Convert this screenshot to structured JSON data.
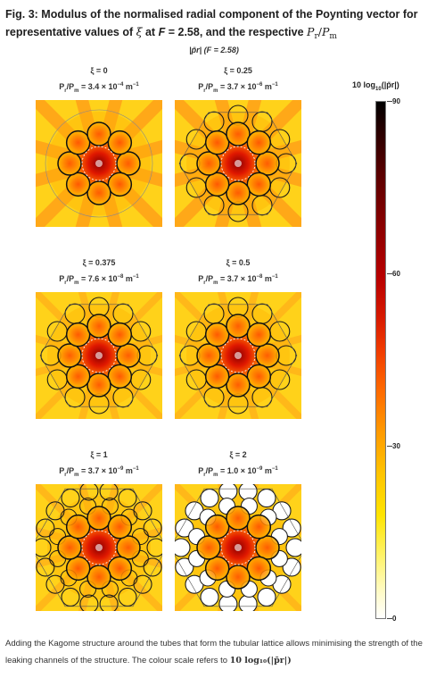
{
  "caption": {
    "label": "Fig. 3:",
    "text": "Modulus of the normalised radial component of the Poynting vector for representative values of",
    "xi_symbol": "ξ",
    "text2": "at",
    "f_label": "F",
    "text3": "= 2.58, and the respective",
    "ratio_symbol_p": "P",
    "ratio_sub_r": "r",
    "ratio_div": "/",
    "ratio_symbol_pm": "P",
    "ratio_sub_m": "m"
  },
  "figure_header": "|p̄r| (F = 2.58)",
  "panels": [
    {
      "xi": "ξ = 0",
      "ratio_base": "P",
      "ratio_sub1": "r",
      "ratio_mid": "/P",
      "ratio_sub2": "m",
      "ratio_value": " = 3.4 × 10",
      "ratio_exp": "−4",
      "ratio_unit": " m",
      "ratio_unit_exp": "−1"
    },
    {
      "xi": "ξ = 0.25",
      "ratio_base": "P",
      "ratio_sub1": "r",
      "ratio_mid": "/P",
      "ratio_sub2": "m",
      "ratio_value": " = 3.7 × 10",
      "ratio_exp": "−6",
      "ratio_unit": " m",
      "ratio_unit_exp": "−1"
    },
    {
      "xi": "ξ = 0.375",
      "ratio_base": "P",
      "ratio_sub1": "r",
      "ratio_mid": "/P",
      "ratio_sub2": "m",
      "ratio_value": " = 7.6 × 10",
      "ratio_exp": "−8",
      "ratio_unit": " m",
      "ratio_unit_exp": "−1"
    },
    {
      "xi": "ξ = 0.5",
      "ratio_base": "P",
      "ratio_sub1": "r",
      "ratio_mid": "/P",
      "ratio_sub2": "m",
      "ratio_value": " = 3.7 × 10",
      "ratio_exp": "−8",
      "ratio_unit": " m",
      "ratio_unit_exp": "−1"
    },
    {
      "xi": "ξ = 1",
      "ratio_base": "P",
      "ratio_sub1": "r",
      "ratio_mid": "/P",
      "ratio_sub2": "m",
      "ratio_value": " = 3.7 × 10",
      "ratio_exp": "−9",
      "ratio_unit": " m",
      "ratio_unit_exp": "−1"
    },
    {
      "xi": "ξ = 2",
      "ratio_base": "P",
      "ratio_sub1": "r",
      "ratio_mid": "/P",
      "ratio_sub2": "m",
      "ratio_value": " = 1.0 × 10",
      "ratio_exp": "−9",
      "ratio_unit": " m",
      "ratio_unit_exp": "−1"
    }
  ],
  "colorbar": {
    "title_pre": "10 log",
    "title_sub": "10",
    "title_post": "(|p̄r|)",
    "ticks": [
      "90",
      "60",
      "30",
      "0"
    ]
  },
  "footer": {
    "text": "Adding the Kagome structure around the tubes that form the tubular lattice allows minimising the strength of the leaking channels of the structure. The colour scale refers to",
    "math": "10 log₁₀(|p̄r|)"
  }
}
